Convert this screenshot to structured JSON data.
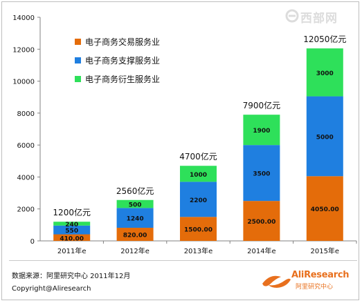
{
  "chart_data": {
    "type": "bar",
    "stacked": true,
    "categories": [
      "2011年e",
      "2012年e",
      "2013年e",
      "2014年e",
      "2015年e"
    ],
    "series": [
      {
        "name": "电子商务交易服务业",
        "color": "#e46c0a",
        "values": [
          410,
          820,
          1500,
          2500,
          4050
        ],
        "labels": [
          "410.00",
          "820.00",
          "1500.00",
          "2500.00",
          "4050.00"
        ]
      },
      {
        "name": "电子商务支撑服务业",
        "color": "#1f7fe0",
        "values": [
          550,
          1240,
          2200,
          3500,
          5000
        ],
        "labels": [
          "550",
          "1240",
          "2200",
          "3500",
          "5000"
        ]
      },
      {
        "name": "电子商务衍生服务业",
        "color": "#2ee05a",
        "values": [
          240,
          500,
          1000,
          1900,
          3000
        ],
        "labels": [
          "240",
          "500",
          "1000",
          "1900",
          "3000"
        ]
      }
    ],
    "totals": [
      1200,
      2560,
      4700,
      7900,
      12050
    ],
    "total_labels": [
      "1200亿元",
      "2560亿元",
      "4700亿元",
      "7900亿元",
      "12050亿元"
    ],
    "ylim": [
      0,
      14000
    ],
    "yticks": [
      0,
      2000,
      4000,
      6000,
      8000,
      10000,
      12000,
      14000
    ],
    "ytick_labels": [
      "0",
      "2000",
      "4000",
      "6000",
      "8000",
      "10000",
      "12000",
      "14000"
    ],
    "legend_position": "top-left",
    "grid": false,
    "title": "",
    "xlabel": "",
    "ylabel": ""
  },
  "footer": {
    "source": "数据来源：阿里研究中心 2011年12月",
    "copyright": "Copyright@Aliresearch"
  },
  "logo": {
    "name": "AliResearch",
    "sub": "阿里研究中心"
  },
  "watermark": {
    "text": "西部网"
  }
}
